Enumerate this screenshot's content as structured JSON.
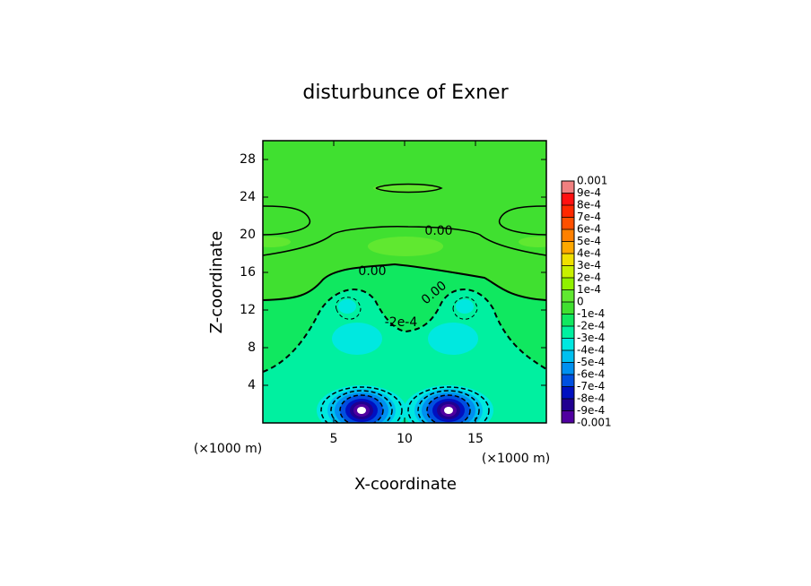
{
  "chart_data": {
    "type": "contour",
    "title": "disturbunce of Exner",
    "x_label": "X-coordinate",
    "y_label": "Z-coordinate",
    "x_unit": "(×1000 m)",
    "y_unit": "(×1000 m)",
    "xlim": [
      0,
      20
    ],
    "xticks": [
      5,
      10,
      15
    ],
    "ylim": [
      0,
      30
    ],
    "yticks": [
      4,
      8,
      12,
      16,
      20,
      24,
      28
    ],
    "levels": [
      {
        "value": 0.001,
        "label": "0.001"
      },
      {
        "value": 0.0009,
        "label": "9e-4"
      },
      {
        "value": 0.0008,
        "label": "8e-4"
      },
      {
        "value": 0.0007,
        "label": "7e-4"
      },
      {
        "value": 0.0006,
        "label": "6e-4"
      },
      {
        "value": 0.0005,
        "label": "5e-4"
      },
      {
        "value": 0.0004,
        "label": "4e-4"
      },
      {
        "value": 0.0003,
        "label": "3e-4"
      },
      {
        "value": 0.0002,
        "label": "2e-4"
      },
      {
        "value": 0.0001,
        "label": "1e-4"
      },
      0,
      {
        "value": -0.0001,
        "label": "-1e-4"
      },
      {
        "value": -0.0002,
        "label": "-2e-4"
      },
      {
        "value": -0.0003,
        "label": "-3e-4"
      },
      {
        "value": -0.0004,
        "label": "-4e-4"
      },
      {
        "value": -0.0005,
        "label": "-5e-4"
      },
      {
        "value": -0.0006,
        "label": "-6e-4"
      },
      {
        "value": -0.0007,
        "label": "-7e-4"
      },
      {
        "value": -0.0008,
        "label": "-8e-4"
      },
      {
        "value": -0.0009,
        "label": "-9e-4"
      },
      {
        "value": -0.001,
        "label": "-0.001"
      }
    ],
    "colors": [
      "#f08080",
      "#ff1010",
      "#ff2800",
      "#ff5000",
      "#ff8000",
      "#ffa800",
      "#f0e000",
      "#c8f000",
      "#90f000",
      "#60e830",
      "#40e030",
      "#10e860",
      "#00f0a0",
      "#00e8e0",
      "#00c0f0",
      "#0090f0",
      "#0050e0",
      "#0010c0",
      "#200090",
      "#5000a0"
    ],
    "contour_labels": [
      {
        "value": 0,
        "label": "0.00"
      },
      {
        "value": 0,
        "label": "0.00"
      },
      {
        "value": 0,
        "label": "0.00"
      },
      {
        "value": -0.0002,
        "label": "-2e-4"
      }
    ]
  }
}
